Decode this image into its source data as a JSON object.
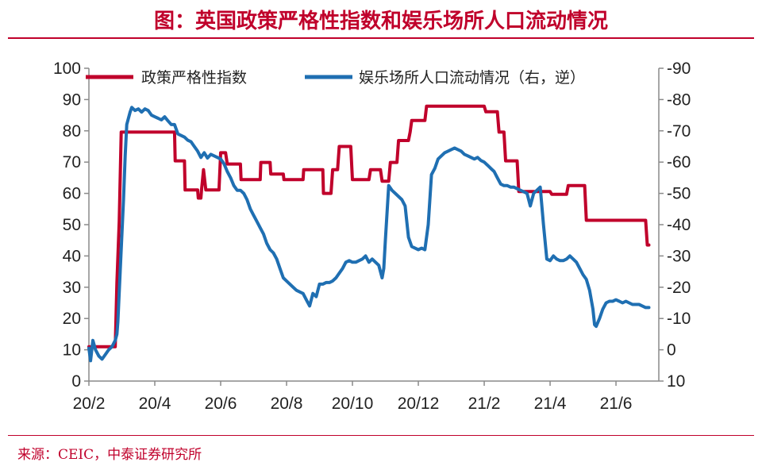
{
  "header": {
    "title": "图：英国政策严格性指数和娱乐场所人口流动情况"
  },
  "footer": {
    "source": "来源：CEIC，中泰证券研究所"
  },
  "chart_data": {
    "type": "line",
    "title": "图：英国政策严格性指数和娱乐场所人口流动情况",
    "grid": false,
    "legend_position": "top",
    "x_ticks": [
      "20/2",
      "20/4",
      "20/6",
      "20/8",
      "20/10",
      "20/12",
      "21/2",
      "21/4",
      "21/6"
    ],
    "x_tick_months": [
      0,
      2,
      4,
      6,
      8,
      10,
      12,
      14,
      16
    ],
    "x_range_months": [
      0,
      17.3
    ],
    "y_left": {
      "range": [
        0,
        100
      ],
      "ticks": [
        "0",
        "10",
        "20",
        "30",
        "40",
        "50",
        "60",
        "70",
        "80",
        "90",
        "100"
      ],
      "tick_values": [
        0,
        10,
        20,
        30,
        40,
        50,
        60,
        70,
        80,
        90,
        100
      ]
    },
    "y_right": {
      "range": [
        10,
        -90
      ],
      "inverted": true,
      "ticks": [
        "10",
        "0",
        "-10",
        "-20",
        "-30",
        "-40",
        "-50",
        "-60",
        "-70",
        "-80",
        "-90"
      ],
      "tick_values": [
        10,
        0,
        -10,
        -20,
        -30,
        -40,
        -50,
        -60,
        -70,
        -80,
        -90
      ]
    },
    "series": [
      {
        "name": "政策严格性指数",
        "axis": "left",
        "color": "#c0002b",
        "step": true,
        "points": [
          [
            0,
            11
          ],
          [
            0.8,
            11
          ],
          [
            0.85,
            31.5
          ],
          [
            0.92,
            51
          ],
          [
            0.98,
            79.6
          ],
          [
            2.6,
            79.6
          ],
          [
            2.62,
            70.4
          ],
          [
            2.9,
            70.4
          ],
          [
            2.92,
            61.1
          ],
          [
            3.3,
            61.1
          ],
          [
            3.32,
            58.5
          ],
          [
            3.4,
            58.5
          ],
          [
            3.42,
            61.1
          ],
          [
            3.48,
            67.6
          ],
          [
            3.55,
            61.1
          ],
          [
            3.95,
            61.1
          ],
          [
            4.0,
            73
          ],
          [
            4.15,
            73
          ],
          [
            4.2,
            69.4
          ],
          [
            4.6,
            69.4
          ],
          [
            4.62,
            64.4
          ],
          [
            5.2,
            64.4
          ],
          [
            5.22,
            69.9
          ],
          [
            5.5,
            69.9
          ],
          [
            5.52,
            66.2
          ],
          [
            5.9,
            66.2
          ],
          [
            5.92,
            64.4
          ],
          [
            6.5,
            64.4
          ],
          [
            6.52,
            67.6
          ],
          [
            7.1,
            67.6
          ],
          [
            7.12,
            60
          ],
          [
            7.35,
            60
          ],
          [
            7.4,
            67.6
          ],
          [
            7.55,
            67.6
          ],
          [
            7.6,
            75
          ],
          [
            7.95,
            75
          ],
          [
            8.0,
            64.4
          ],
          [
            8.5,
            64.4
          ],
          [
            8.55,
            67.6
          ],
          [
            8.85,
            67.6
          ],
          [
            8.9,
            63.9
          ],
          [
            9.1,
            63.9
          ],
          [
            9.15,
            69.9
          ],
          [
            9.35,
            69.9
          ],
          [
            9.4,
            76.9
          ],
          [
            9.7,
            76.9
          ],
          [
            9.75,
            79.6
          ],
          [
            9.8,
            83.3
          ],
          [
            10.2,
            83.3
          ],
          [
            10.25,
            87.9
          ],
          [
            12.0,
            87.9
          ],
          [
            12.05,
            86.1
          ],
          [
            12.4,
            86.1
          ],
          [
            12.45,
            79.6
          ],
          [
            12.6,
            79.6
          ],
          [
            12.65,
            70.4
          ],
          [
            13.0,
            70.4
          ],
          [
            13.05,
            60.6
          ],
          [
            14.0,
            60.6
          ],
          [
            14.05,
            59.7
          ],
          [
            14.5,
            59.7
          ],
          [
            14.55,
            62.5
          ],
          [
            15.05,
            62.5
          ],
          [
            15.1,
            51.4
          ],
          [
            16.9,
            51.4
          ],
          [
            16.95,
            43.5
          ],
          [
            17.0,
            43.5
          ]
        ]
      },
      {
        "name": "娱乐场所人口流动情况（右，逆）",
        "axis": "right",
        "color": "#1f6fb2",
        "step": false,
        "points": [
          [
            0,
            -0.5
          ],
          [
            0.05,
            3.5
          ],
          [
            0.12,
            -3
          ],
          [
            0.2,
            0
          ],
          [
            0.3,
            2
          ],
          [
            0.4,
            3
          ],
          [
            0.5,
            1.5
          ],
          [
            0.6,
            0
          ],
          [
            0.7,
            -1
          ],
          [
            0.8,
            -3
          ],
          [
            0.85,
            -5
          ],
          [
            0.88,
            -9
          ],
          [
            0.95,
            -25
          ],
          [
            1.05,
            -48
          ],
          [
            1.1,
            -62
          ],
          [
            1.15,
            -72
          ],
          [
            1.25,
            -76
          ],
          [
            1.3,
            -77.5
          ],
          [
            1.4,
            -76.5
          ],
          [
            1.5,
            -77
          ],
          [
            1.6,
            -76
          ],
          [
            1.7,
            -77
          ],
          [
            1.8,
            -76.5
          ],
          [
            1.9,
            -75
          ],
          [
            2.0,
            -74.5
          ],
          [
            2.1,
            -74
          ],
          [
            2.2,
            -73.5
          ],
          [
            2.3,
            -74.5
          ],
          [
            2.4,
            -73.2
          ],
          [
            2.5,
            -72
          ],
          [
            2.6,
            -72
          ],
          [
            2.7,
            -69
          ],
          [
            2.8,
            -68.5
          ],
          [
            2.9,
            -68
          ],
          [
            3.0,
            -67
          ],
          [
            3.1,
            -66.5
          ],
          [
            3.2,
            -65
          ],
          [
            3.3,
            -63.5
          ],
          [
            3.4,
            -61.5
          ],
          [
            3.5,
            -63
          ],
          [
            3.6,
            -61.3
          ],
          [
            3.7,
            -62.5
          ],
          [
            3.8,
            -62
          ],
          [
            3.9,
            -61.5
          ],
          [
            4.0,
            -61
          ],
          [
            4.1,
            -59.5
          ],
          [
            4.2,
            -57
          ],
          [
            4.3,
            -55
          ],
          [
            4.4,
            -52.5
          ],
          [
            4.5,
            -51
          ],
          [
            4.6,
            -51
          ],
          [
            4.7,
            -50
          ],
          [
            4.8,
            -48
          ],
          [
            4.9,
            -45
          ],
          [
            5.0,
            -43
          ],
          [
            5.1,
            -41
          ],
          [
            5.2,
            -39
          ],
          [
            5.3,
            -37
          ],
          [
            5.4,
            -34
          ],
          [
            5.5,
            -32
          ],
          [
            5.6,
            -31
          ],
          [
            5.7,
            -29
          ],
          [
            5.8,
            -26
          ],
          [
            5.9,
            -23
          ],
          [
            6.0,
            -22
          ],
          [
            6.1,
            -21
          ],
          [
            6.2,
            -20
          ],
          [
            6.3,
            -19
          ],
          [
            6.4,
            -18.5
          ],
          [
            6.5,
            -18
          ],
          [
            6.6,
            -16
          ],
          [
            6.7,
            -14
          ],
          [
            6.8,
            -18
          ],
          [
            6.9,
            -17
          ],
          [
            7.0,
            -21
          ],
          [
            7.1,
            -21
          ],
          [
            7.2,
            -21.5
          ],
          [
            7.3,
            -21.5
          ],
          [
            7.4,
            -22
          ],
          [
            7.5,
            -23
          ],
          [
            7.6,
            -24.5
          ],
          [
            7.7,
            -26
          ],
          [
            7.8,
            -28
          ],
          [
            7.9,
            -28.5
          ],
          [
            8.0,
            -28
          ],
          [
            8.1,
            -28
          ],
          [
            8.2,
            -28.5
          ],
          [
            8.3,
            -29
          ],
          [
            8.4,
            -30
          ],
          [
            8.5,
            -28
          ],
          [
            8.6,
            -29
          ],
          [
            8.7,
            -28
          ],
          [
            8.8,
            -27
          ],
          [
            8.9,
            -23
          ],
          [
            8.95,
            -26
          ],
          [
            9.0,
            -35
          ],
          [
            9.1,
            -52.5
          ],
          [
            9.2,
            -51
          ],
          [
            9.3,
            -50
          ],
          [
            9.4,
            -49
          ],
          [
            9.5,
            -48
          ],
          [
            9.6,
            -46
          ],
          [
            9.7,
            -36
          ],
          [
            9.8,
            -33
          ],
          [
            9.9,
            -32.5
          ],
          [
            10.0,
            -32
          ],
          [
            10.1,
            -32.5
          ],
          [
            10.2,
            -32
          ],
          [
            10.3,
            -40
          ],
          [
            10.4,
            -56
          ],
          [
            10.5,
            -58
          ],
          [
            10.6,
            -61
          ],
          [
            10.7,
            -62
          ],
          [
            10.8,
            -63
          ],
          [
            10.9,
            -63.5
          ],
          [
            11.0,
            -64
          ],
          [
            11.1,
            -64.5
          ],
          [
            11.2,
            -64
          ],
          [
            11.3,
            -63.5
          ],
          [
            11.4,
            -62.5
          ],
          [
            11.5,
            -62
          ],
          [
            11.6,
            -61.5
          ],
          [
            11.7,
            -61
          ],
          [
            11.8,
            -61.5
          ],
          [
            11.9,
            -60.5
          ],
          [
            12.0,
            -60
          ],
          [
            12.1,
            -59
          ],
          [
            12.2,
            -58
          ],
          [
            12.3,
            -57
          ],
          [
            12.4,
            -55
          ],
          [
            12.5,
            -53
          ],
          [
            12.6,
            -52.5
          ],
          [
            12.7,
            -52.5
          ],
          [
            12.8,
            -52
          ],
          [
            12.9,
            -52
          ],
          [
            13.0,
            -51.5
          ],
          [
            13.1,
            -51
          ],
          [
            13.2,
            -50.5
          ],
          [
            13.3,
            -50
          ],
          [
            13.4,
            -46
          ],
          [
            13.5,
            -50
          ],
          [
            13.6,
            -51
          ],
          [
            13.7,
            -52
          ],
          [
            13.8,
            -40
          ],
          [
            13.9,
            -29
          ],
          [
            14.0,
            -28.5
          ],
          [
            14.1,
            -30
          ],
          [
            14.2,
            -29
          ],
          [
            14.3,
            -28.5
          ],
          [
            14.4,
            -28.5
          ],
          [
            14.5,
            -29
          ],
          [
            14.6,
            -30
          ],
          [
            14.7,
            -29
          ],
          [
            14.8,
            -28
          ],
          [
            14.9,
            -26
          ],
          [
            15.0,
            -24
          ],
          [
            15.1,
            -22.5
          ],
          [
            15.2,
            -19
          ],
          [
            15.3,
            -13
          ],
          [
            15.35,
            -8
          ],
          [
            15.4,
            -7.5
          ],
          [
            15.5,
            -10
          ],
          [
            15.6,
            -13
          ],
          [
            15.7,
            -15
          ],
          [
            15.8,
            -15.5
          ],
          [
            15.9,
            -15.5
          ],
          [
            16.0,
            -16
          ],
          [
            16.1,
            -15.5
          ],
          [
            16.2,
            -15
          ],
          [
            16.3,
            -15.5
          ],
          [
            16.4,
            -15
          ],
          [
            16.5,
            -14.5
          ],
          [
            16.6,
            -14.5
          ],
          [
            16.7,
            -14.5
          ],
          [
            16.8,
            -14
          ],
          [
            16.9,
            -13.5
          ],
          [
            17.0,
            -13.5
          ]
        ]
      }
    ]
  }
}
